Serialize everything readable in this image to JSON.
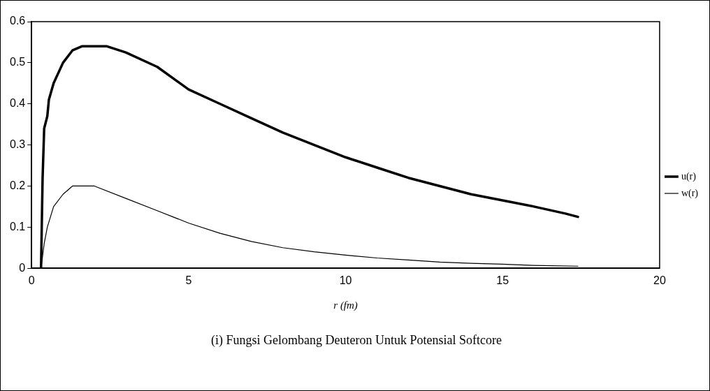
{
  "chart_data": {
    "type": "line",
    "title": "(i) Fungsi Gelombang Deuteron Untuk Potensial Softcore",
    "xlabel": "r (fm)",
    "xlim": [
      0,
      20
    ],
    "xticks": [
      0,
      5,
      10,
      15,
      20
    ],
    "ylim": [
      0,
      0.6
    ],
    "yticks": [
      0,
      0.1,
      0.2,
      0.3,
      0.4,
      0.5,
      0.6
    ],
    "grid": false,
    "legend": "right",
    "marker": "none",
    "line_style": "solid",
    "series": [
      {
        "name": "u(r)",
        "color": "#000000",
        "x": [
          0.3,
          0.35,
          0.4,
          0.5,
          0.55,
          0.7,
          1.0,
          1.3,
          1.6,
          2.4,
          3,
          4,
          5,
          6,
          7,
          8,
          9,
          10,
          11,
          12,
          13,
          14,
          15,
          16,
          17,
          17.4
        ],
        "values": [
          0,
          0.22,
          0.34,
          0.37,
          0.41,
          0.45,
          0.5,
          0.53,
          0.54,
          0.54,
          0.525,
          0.49,
          0.435,
          0.4,
          0.365,
          0.33,
          0.3,
          0.27,
          0.245,
          0.22,
          0.2,
          0.18,
          0.165,
          0.15,
          0.133,
          0.125
        ]
      },
      {
        "name": "w(r)",
        "color": "#000000",
        "x": [
          0.3,
          0.4,
          0.5,
          0.7,
          1.0,
          1.3,
          2.0,
          3,
          4,
          5,
          6,
          7,
          8,
          9,
          10,
          11,
          12,
          13,
          14,
          15,
          16,
          17.4
        ],
        "values": [
          0,
          0.06,
          0.1,
          0.15,
          0.18,
          0.2,
          0.2,
          0.17,
          0.14,
          0.11,
          0.085,
          0.065,
          0.05,
          0.04,
          0.032,
          0.025,
          0.02,
          0.015,
          0.012,
          0.01,
          0.007,
          0.005
        ]
      }
    ]
  }
}
